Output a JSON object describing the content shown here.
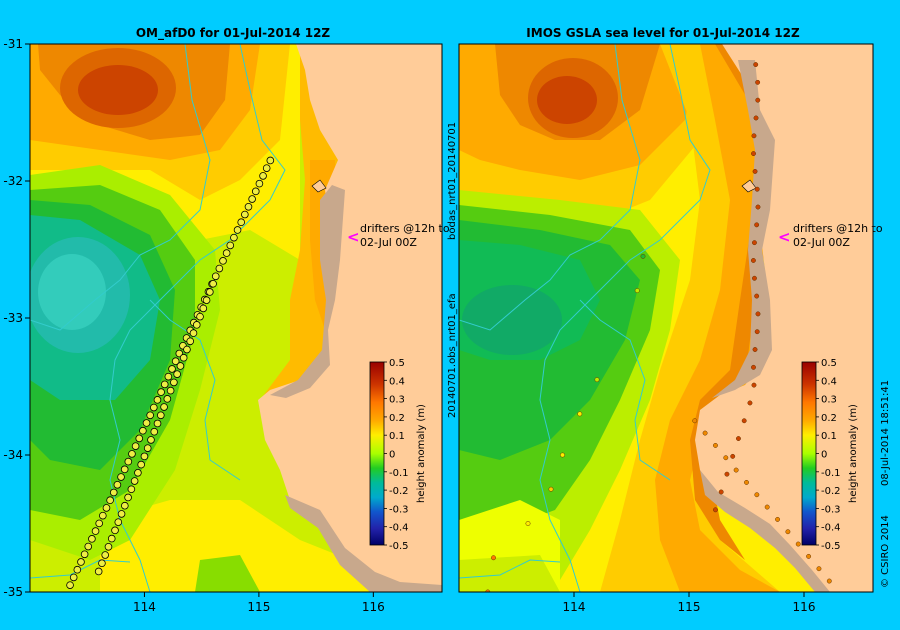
{
  "chart_data": [
    {
      "type": "heatmap",
      "title": "OM_afD0 for 01-Jul-2014 12Z",
      "x_ticks": [
        114,
        115,
        116
      ],
      "y_ticks": [
        -31,
        -32,
        -33,
        -34,
        -35
      ],
      "xlim": [
        113.0,
        116.6
      ],
      "ylim": [
        -35.0,
        -31.0
      ],
      "annotation": [
        "drifters @12h to",
        "02-Jul 00Z"
      ],
      "colorbar": {
        "label": "height anomaly (m)",
        "range": [
          -0.5,
          0.5
        ],
        "ticks": [
          "0.5",
          "0.4",
          "0.3",
          "0.2",
          "0.1",
          "0",
          "-0.1",
          "-0.2",
          "-0.3",
          "-0.4",
          "-0.5"
        ]
      },
      "features": [
        {
          "kind": "high",
          "lon": 113.5,
          "lat": -31.3,
          "value": 0.38
        },
        {
          "kind": "low",
          "lon": 113.4,
          "lat": -32.9,
          "value": -0.12
        },
        {
          "kind": "low",
          "lon": 113.6,
          "lat": -33.7,
          "value": -0.05
        },
        {
          "kind": "high",
          "lon": 115.7,
          "lat": -32.4,
          "value": 0.25
        }
      ],
      "drifter_tracks": [
        {
          "start": [
            113.35,
            -34.95
          ],
          "end": [
            115.1,
            -31.85
          ],
          "count": 56
        },
        {
          "start": [
            113.6,
            -34.85
          ],
          "end": [
            114.6,
            -32.75
          ],
          "count": 36
        }
      ]
    },
    {
      "type": "heatmap",
      "title": "IMOS GSLA sea level  for 01-Jul-2014 12Z",
      "x_ticks": [
        114,
        115,
        116
      ],
      "xlim": [
        113.0,
        116.6
      ],
      "ylim": [
        -35.0,
        -31.0
      ],
      "annotation": [
        "drifters @12h to",
        "02-Jul 00Z"
      ],
      "side_labels": [
        "20140701.obs_nrt01_efa",
        "bodas_nrt01_20140701"
      ],
      "credit": [
        "© CSIRO 2014",
        "08-Jul-2014 18:51:41"
      ],
      "colorbar": {
        "label": "height anomaly (m)",
        "range": [
          -0.5,
          0.5
        ],
        "ticks": [
          "0.5",
          "0.4",
          "0.3",
          "0.2",
          "0.1",
          "0",
          "-0.1",
          "-0.2",
          "-0.3",
          "-0.4",
          "-0.5"
        ]
      },
      "features": [
        {
          "kind": "high",
          "lon": 113.75,
          "lat": -31.45,
          "value": 0.4
        },
        {
          "kind": "low",
          "lon": 113.45,
          "lat": -33.15,
          "value": -0.12
        },
        {
          "kind": "high",
          "lon": 115.45,
          "lat": -32.5,
          "value": 0.28
        },
        {
          "kind": "high",
          "lon": 115.2,
          "lat": -34.3,
          "value": 0.22
        }
      ]
    }
  ],
  "colors": {
    "background": "#00ccff",
    "land": "#ffcc99",
    "shelf": "#c8a88c",
    "river": "#33cccc"
  }
}
